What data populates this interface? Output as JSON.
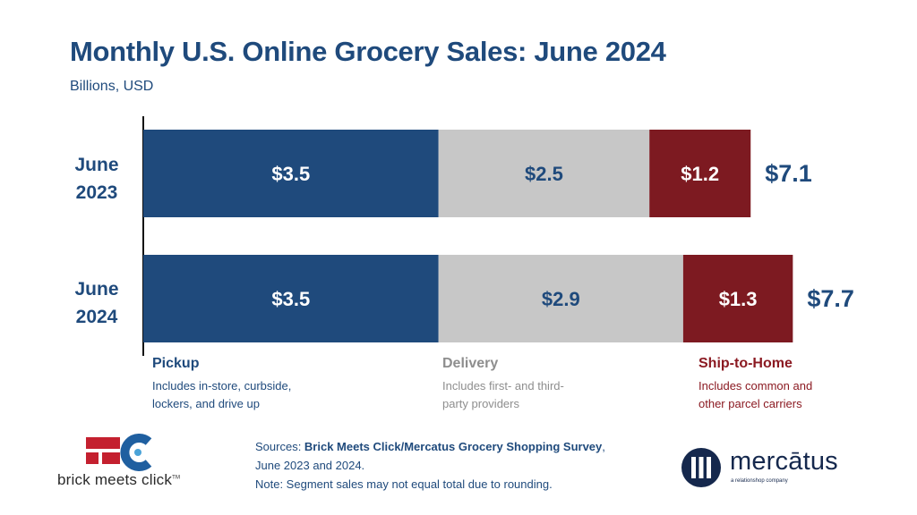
{
  "header": {
    "title": "Monthly U.S. Online Grocery Sales: June 2024",
    "subtitle": "Billions, USD"
  },
  "chart_data": {
    "type": "bar",
    "orientation": "horizontal",
    "stacked": true,
    "title": "Monthly U.S. Online Grocery Sales: June 2024",
    "ylabel": "",
    "xlabel": "",
    "unit": "Billions, USD",
    "categories": [
      [
        "June",
        "2023"
      ],
      [
        "June",
        "2024"
      ]
    ],
    "series": [
      {
        "name": "Pickup",
        "values": [
          3.5,
          3.5
        ],
        "labels": [
          "$3.5",
          "$3.5"
        ],
        "color": "#1f4a7c",
        "label_color": "#ffffff"
      },
      {
        "name": "Delivery",
        "values": [
          2.5,
          2.9
        ],
        "labels": [
          "$2.5",
          "$2.9"
        ],
        "color": "#c7c7c7",
        "label_color": "#1f4a7c"
      },
      {
        "name": "Ship-to-Home",
        "values": [
          1.2,
          1.3
        ],
        "labels": [
          "$1.2",
          "$1.3"
        ],
        "color": "#7d1a21",
        "label_color": "#ffffff"
      }
    ],
    "totals": [
      "$7.1",
      "$7.7"
    ],
    "xlim": [
      0,
      7.7
    ],
    "grid": false,
    "legend_position": "bottom"
  },
  "legend": [
    {
      "name": "Pickup",
      "desc": [
        "Includes in-store, curbside,",
        "lockers, and drive up"
      ]
    },
    {
      "name": "Delivery",
      "desc": [
        "Includes first- and third-",
        "party providers"
      ]
    },
    {
      "name": "Ship-to-Home",
      "desc": [
        "Includes common and",
        "other parcel carriers"
      ]
    }
  ],
  "sources": {
    "prefix": "Sources: ",
    "name": "Brick Meets Click/Mercatus Grocery Shopping Survey",
    "suffix": ",",
    "line2": "June 2023 and 2024.",
    "note": "Note: Segment sales may not equal total due to rounding."
  },
  "logos": {
    "bmc": "brick meets click",
    "bmc_tm": "TM",
    "mercatus": "mercātus",
    "mercatus_tag": "a relationshop company"
  },
  "colors": {
    "navy": "#1f4a7c",
    "gray": "#c7c7c7",
    "maroon": "#7d1a21"
  }
}
